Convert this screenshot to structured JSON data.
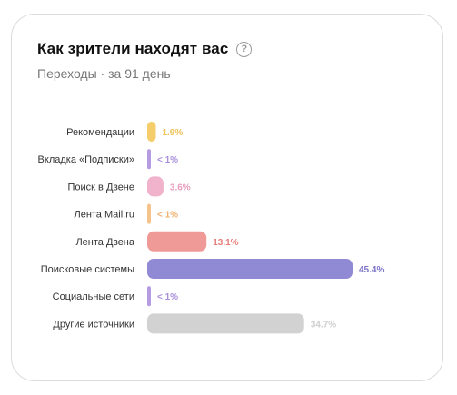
{
  "header": {
    "title": "Как зрители находят вас",
    "help_icon": "question-circle-icon",
    "help_symbol": "?",
    "subtitle": "Переходы · за 91 день"
  },
  "chart_data": {
    "type": "bar",
    "orientation": "horizontal",
    "title": "Как зрители находят вас",
    "subtitle": "Переходы · за 91 день",
    "categories": [
      "Рекомендации",
      "Вкладка «Подписки»",
      "Поиск в Дзене",
      "Лента Mail.ru",
      "Лента Дзена",
      "Поисковые системы",
      "Социальные сети",
      "Другие источники"
    ],
    "values": [
      1.9,
      0.5,
      3.6,
      0.5,
      13.1,
      45.4,
      0.5,
      34.7
    ],
    "value_labels": [
      "1.9%",
      "< 1%",
      "3.6%",
      "< 1%",
      "13.1%",
      "45.4%",
      "< 1%",
      "34.7%"
    ],
    "colors": [
      "#f5cd6b",
      "#b59be0",
      "#f0b3cb",
      "#f5c48d",
      "#ef9a97",
      "#9089d4",
      "#b59be0",
      "#d2d2d2"
    ],
    "label_colors": [
      "#f0c45a",
      "#a98fdc",
      "#e99dbd",
      "#f0b070",
      "#e67d7a",
      "#7c74c8",
      "#a98fdc",
      "#cfcfcf"
    ],
    "xlim": [
      0,
      45.4
    ],
    "grid": false,
    "legend": "none"
  }
}
